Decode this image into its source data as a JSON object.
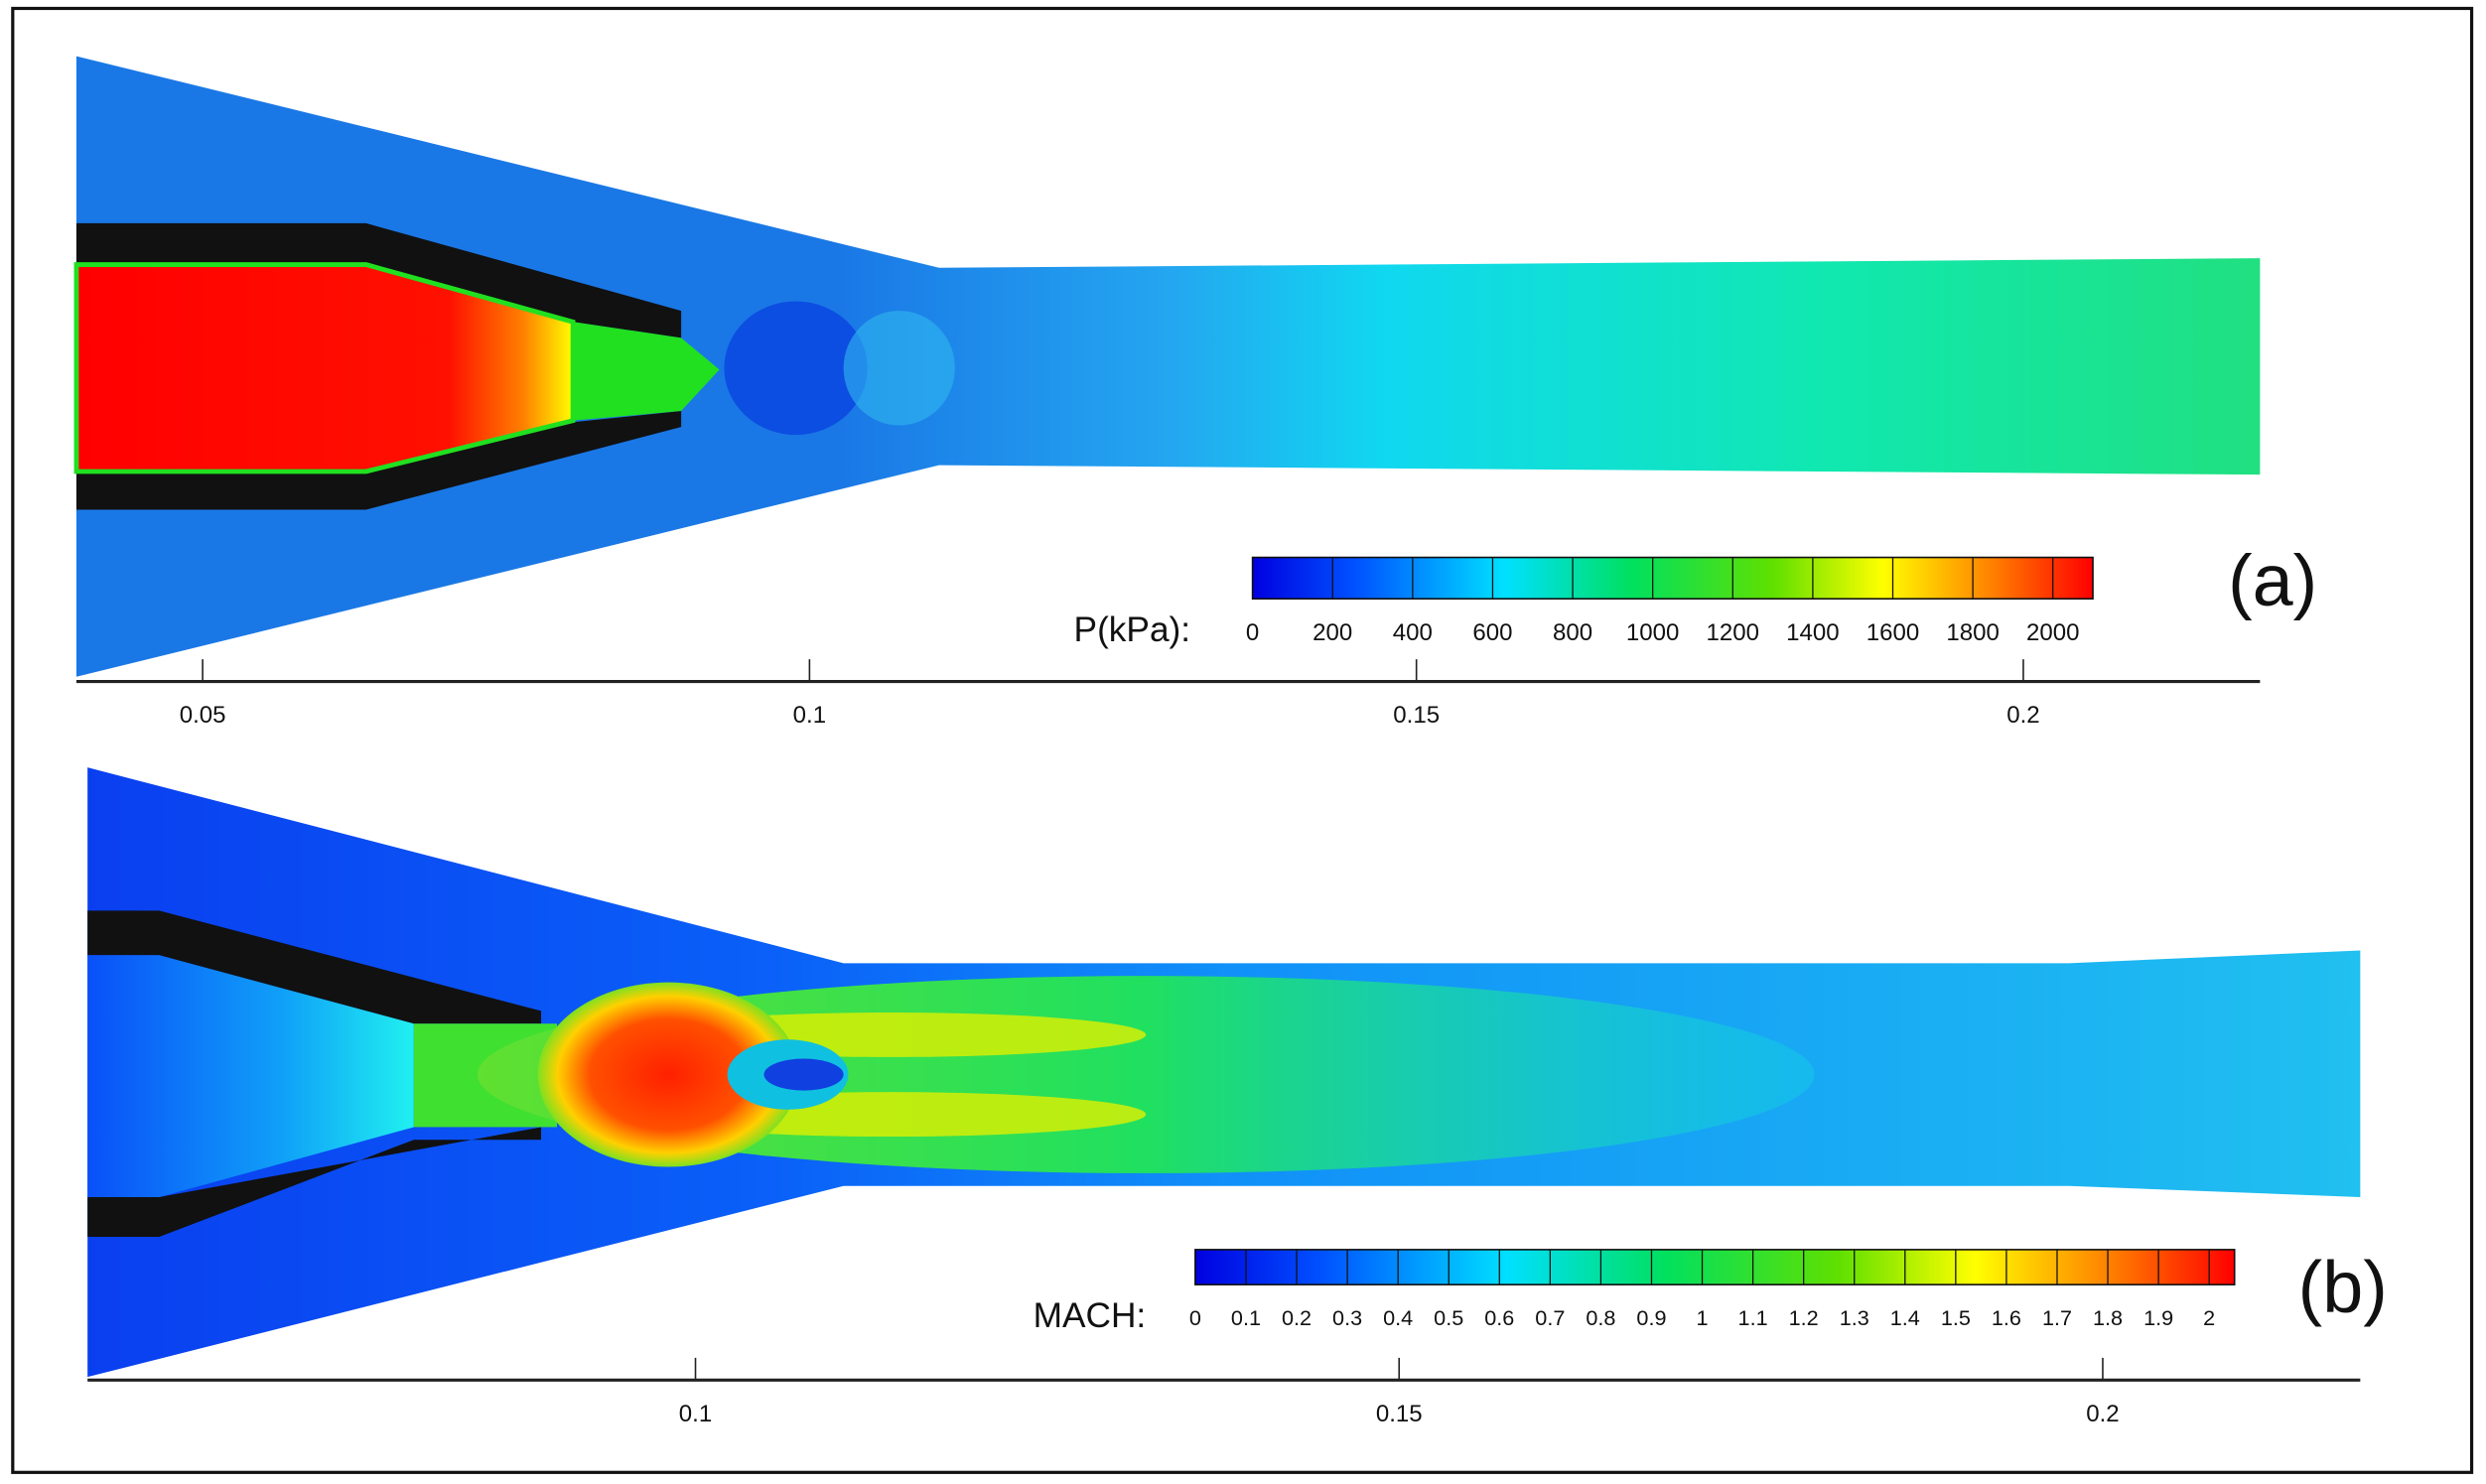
{
  "chart_data": [
    {
      "type": "contour",
      "panel_label": "(a)",
      "xlim": [
        0.0396,
        0.2195
      ],
      "xticks": [
        0.05,
        0.1,
        0.15,
        0.2
      ],
      "colorbar": {
        "title": "P(kPa):",
        "lim": [
          0,
          2100
        ],
        "ticks": [
          0,
          200,
          400,
          600,
          800,
          1000,
          1200,
          1400,
          1600,
          1800,
          2000
        ]
      }
    },
    {
      "type": "contour",
      "panel_label": "(b)",
      "xlim": [
        0.0568,
        0.2183
      ],
      "xticks": [
        0.1,
        0.15,
        0.2
      ],
      "colorbar": {
        "title": "MACH:",
        "lim": [
          0,
          2.05
        ],
        "ticks": [
          0,
          0.1,
          0.2,
          0.3,
          0.4,
          0.5,
          0.6,
          0.7,
          0.8,
          0.9,
          1,
          1.1,
          1.2,
          1.3,
          1.4,
          1.5,
          1.6,
          1.7,
          1.8,
          1.9,
          2
        ]
      }
    }
  ]
}
